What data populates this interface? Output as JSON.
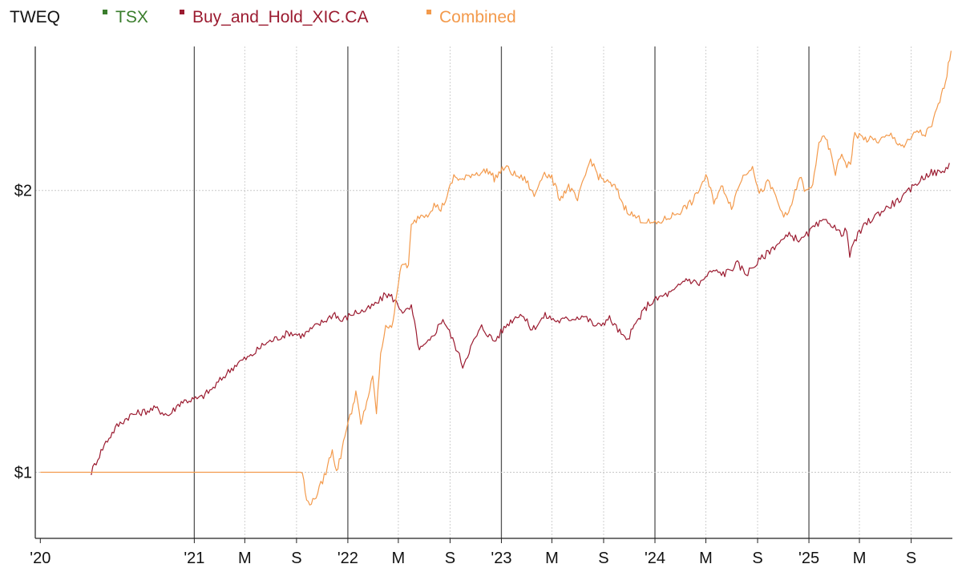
{
  "chart_data": {
    "type": "line",
    "title": "TWEQ",
    "legend_position": "top-left",
    "y_scale": "log",
    "ylim": [
      0.85,
      2.85
    ],
    "yticks": [
      {
        "value": 1,
        "label": "$1"
      },
      {
        "value": 2,
        "label": "$2"
      }
    ],
    "xlim": [
      "2019-12-20",
      "2025-12-08"
    ],
    "xticks": [
      {
        "date": "2020-01-01",
        "label": "'20",
        "major": true
      },
      {
        "date": "2021-01-01",
        "label": "'21",
        "major": true
      },
      {
        "date": "2021-05-01",
        "label": "M",
        "major": false
      },
      {
        "date": "2021-09-01",
        "label": "S",
        "major": false
      },
      {
        "date": "2022-01-01",
        "label": "'22",
        "major": true
      },
      {
        "date": "2022-05-01",
        "label": "M",
        "major": false
      },
      {
        "date": "2022-09-01",
        "label": "S",
        "major": false
      },
      {
        "date": "2023-01-01",
        "label": "'23",
        "major": true
      },
      {
        "date": "2023-05-01",
        "label": "M",
        "major": false
      },
      {
        "date": "2023-09-01",
        "label": "S",
        "major": false
      },
      {
        "date": "2024-01-01",
        "label": "'24",
        "major": true
      },
      {
        "date": "2024-05-01",
        "label": "M",
        "major": false
      },
      {
        "date": "2024-09-01",
        "label": "S",
        "major": false
      },
      {
        "date": "2025-01-01",
        "label": "'25",
        "major": true
      },
      {
        "date": "2025-05-01",
        "label": "M",
        "major": false
      },
      {
        "date": "2025-09-01",
        "label": "S",
        "major": false
      }
    ],
    "grid": true,
    "series": [
      {
        "name": "TSX",
        "color": "#3a7d2c",
        "points": []
      },
      {
        "name": "Buy_and_Hold_XIC.CA",
        "color": "#9b1b30",
        "points": [
          [
            "2020-05-01",
            1.0
          ],
          [
            "2020-06-01",
            1.07
          ],
          [
            "2020-07-01",
            1.12
          ],
          [
            "2020-08-01",
            1.15
          ],
          [
            "2020-10-01",
            1.17
          ],
          [
            "2020-11-01",
            1.15
          ],
          [
            "2020-12-01",
            1.19
          ],
          [
            "2021-01-15",
            1.2
          ],
          [
            "2021-02-15",
            1.23
          ],
          [
            "2021-03-15",
            1.27
          ],
          [
            "2021-04-15",
            1.31
          ],
          [
            "2021-05-15",
            1.33
          ],
          [
            "2021-06-15",
            1.37
          ],
          [
            "2021-07-15",
            1.39
          ],
          [
            "2021-08-15",
            1.41
          ],
          [
            "2021-09-15",
            1.4
          ],
          [
            "2021-10-15",
            1.43
          ],
          [
            "2021-11-15",
            1.46
          ],
          [
            "2021-12-01",
            1.48
          ],
          [
            "2021-12-15",
            1.45
          ],
          [
            "2022-01-15",
            1.48
          ],
          [
            "2022-02-15",
            1.49
          ],
          [
            "2022-03-15",
            1.52
          ],
          [
            "2022-04-01",
            1.55
          ],
          [
            "2022-04-15",
            1.54
          ],
          [
            "2022-05-15",
            1.48
          ],
          [
            "2022-06-01",
            1.5
          ],
          [
            "2022-06-20",
            1.35
          ],
          [
            "2022-07-15",
            1.38
          ],
          [
            "2022-08-15",
            1.46
          ],
          [
            "2022-09-15",
            1.36
          ],
          [
            "2022-10-01",
            1.3
          ],
          [
            "2022-10-20",
            1.36
          ],
          [
            "2022-11-15",
            1.43
          ],
          [
            "2022-12-15",
            1.38
          ],
          [
            "2023-01-15",
            1.44
          ],
          [
            "2023-02-15",
            1.48
          ],
          [
            "2023-03-15",
            1.42
          ],
          [
            "2023-04-15",
            1.47
          ],
          [
            "2023-05-15",
            1.45
          ],
          [
            "2023-06-15",
            1.46
          ],
          [
            "2023-07-15",
            1.47
          ],
          [
            "2023-08-15",
            1.43
          ],
          [
            "2023-09-15",
            1.46
          ],
          [
            "2023-10-25",
            1.38
          ],
          [
            "2023-11-20",
            1.45
          ],
          [
            "2023-12-15",
            1.51
          ],
          [
            "2024-01-15",
            1.54
          ],
          [
            "2024-02-15",
            1.56
          ],
          [
            "2024-03-15",
            1.61
          ],
          [
            "2024-04-15",
            1.59
          ],
          [
            "2024-05-15",
            1.64
          ],
          [
            "2024-06-15",
            1.63
          ],
          [
            "2024-07-15",
            1.67
          ],
          [
            "2024-08-05",
            1.63
          ],
          [
            "2024-09-15",
            1.7
          ],
          [
            "2024-10-15",
            1.75
          ],
          [
            "2024-11-15",
            1.79
          ],
          [
            "2024-12-15",
            1.77
          ],
          [
            "2025-01-15",
            1.83
          ],
          [
            "2025-02-15",
            1.86
          ],
          [
            "2025-03-15",
            1.8
          ],
          [
            "2025-04-01",
            1.81
          ],
          [
            "2025-04-08",
            1.7
          ],
          [
            "2025-04-20",
            1.77
          ],
          [
            "2025-05-15",
            1.84
          ],
          [
            "2025-06-15",
            1.89
          ],
          [
            "2025-07-15",
            1.93
          ],
          [
            "2025-08-15",
            1.97
          ],
          [
            "2025-09-15",
            2.04
          ],
          [
            "2025-10-15",
            2.09
          ],
          [
            "2025-11-15",
            2.09
          ],
          [
            "2025-12-01",
            2.14
          ]
        ]
      },
      {
        "name": "Combined",
        "color": "#f39a4c",
        "points": [
          [
            "2020-01-01",
            1.0
          ],
          [
            "2021-09-15",
            1.0
          ],
          [
            "2021-09-25",
            0.93
          ],
          [
            "2021-10-10",
            0.93
          ],
          [
            "2021-10-25",
            0.96
          ],
          [
            "2021-11-10",
            1.0
          ],
          [
            "2021-11-25",
            1.06
          ],
          [
            "2021-12-05",
            1.0
          ],
          [
            "2021-12-15",
            1.04
          ],
          [
            "2021-12-25",
            1.1
          ],
          [
            "2022-01-10",
            1.16
          ],
          [
            "2022-01-20",
            1.22
          ],
          [
            "2022-02-01",
            1.12
          ],
          [
            "2022-02-15",
            1.19
          ],
          [
            "2022-03-01",
            1.26
          ],
          [
            "2022-03-10",
            1.16
          ],
          [
            "2022-03-20",
            1.33
          ],
          [
            "2022-04-01",
            1.44
          ],
          [
            "2022-04-15",
            1.42
          ],
          [
            "2022-04-25",
            1.53
          ],
          [
            "2022-05-05",
            1.64
          ],
          [
            "2022-05-15",
            1.67
          ],
          [
            "2022-05-25",
            1.66
          ],
          [
            "2022-06-01",
            1.83
          ],
          [
            "2022-06-20",
            1.88
          ],
          [
            "2022-07-10",
            1.89
          ],
          [
            "2022-07-25",
            1.93
          ],
          [
            "2022-08-10",
            1.91
          ],
          [
            "2022-08-25",
            1.97
          ],
          [
            "2022-09-10",
            2.07
          ],
          [
            "2022-10-01",
            2.05
          ],
          [
            "2022-10-20",
            2.08
          ],
          [
            "2022-11-10",
            2.09
          ],
          [
            "2022-12-01",
            2.1
          ],
          [
            "2022-12-15",
            2.06
          ],
          [
            "2023-01-10",
            2.12
          ],
          [
            "2023-02-01",
            2.08
          ],
          [
            "2023-03-01",
            2.05
          ],
          [
            "2023-03-20",
            1.97
          ],
          [
            "2023-04-10",
            2.09
          ],
          [
            "2023-05-01",
            2.06
          ],
          [
            "2023-05-20",
            1.96
          ],
          [
            "2023-06-10",
            2.02
          ],
          [
            "2023-07-01",
            1.95
          ],
          [
            "2023-07-20",
            2.08
          ],
          [
            "2023-08-01",
            2.16
          ],
          [
            "2023-08-20",
            2.07
          ],
          [
            "2023-09-10",
            2.04
          ],
          [
            "2023-10-01",
            2.01
          ],
          [
            "2023-10-20",
            1.92
          ],
          [
            "2023-11-10",
            1.88
          ],
          [
            "2023-12-01",
            1.86
          ],
          [
            "2024-01-01",
            1.84
          ],
          [
            "2024-02-01",
            1.87
          ],
          [
            "2024-03-01",
            1.9
          ],
          [
            "2024-04-01",
            1.95
          ],
          [
            "2024-05-01",
            2.07
          ],
          [
            "2024-05-20",
            1.95
          ],
          [
            "2024-06-10",
            2.02
          ],
          [
            "2024-07-01",
            1.92
          ],
          [
            "2024-07-25",
            2.06
          ],
          [
            "2024-08-20",
            2.13
          ],
          [
            "2024-09-05",
            1.98
          ],
          [
            "2024-09-25",
            2.04
          ],
          [
            "2024-10-10",
            1.99
          ],
          [
            "2024-10-25",
            1.91
          ],
          [
            "2024-11-10",
            1.87
          ],
          [
            "2024-11-25",
            1.96
          ],
          [
            "2024-12-10",
            2.07
          ],
          [
            "2024-12-25",
            1.99
          ],
          [
            "2025-01-10",
            2.02
          ],
          [
            "2025-01-25",
            2.26
          ],
          [
            "2025-02-10",
            2.27
          ],
          [
            "2025-02-20",
            2.2
          ],
          [
            "2025-03-05",
            2.09
          ],
          [
            "2025-03-20",
            2.19
          ],
          [
            "2025-04-01",
            2.13
          ],
          [
            "2025-04-10",
            2.14
          ],
          [
            "2025-04-20",
            2.3
          ],
          [
            "2025-05-15",
            2.27
          ],
          [
            "2025-06-15",
            2.26
          ],
          [
            "2025-07-15",
            2.29
          ],
          [
            "2025-08-01",
            2.25
          ],
          [
            "2025-08-15",
            2.23
          ],
          [
            "2025-09-01",
            2.27
          ],
          [
            "2025-09-15",
            2.32
          ],
          [
            "2025-10-01",
            2.29
          ],
          [
            "2025-10-20",
            2.34
          ],
          [
            "2025-11-01",
            2.44
          ],
          [
            "2025-11-15",
            2.55
          ],
          [
            "2025-11-25",
            2.67
          ],
          [
            "2025-12-05",
            2.82
          ]
        ]
      }
    ]
  }
}
